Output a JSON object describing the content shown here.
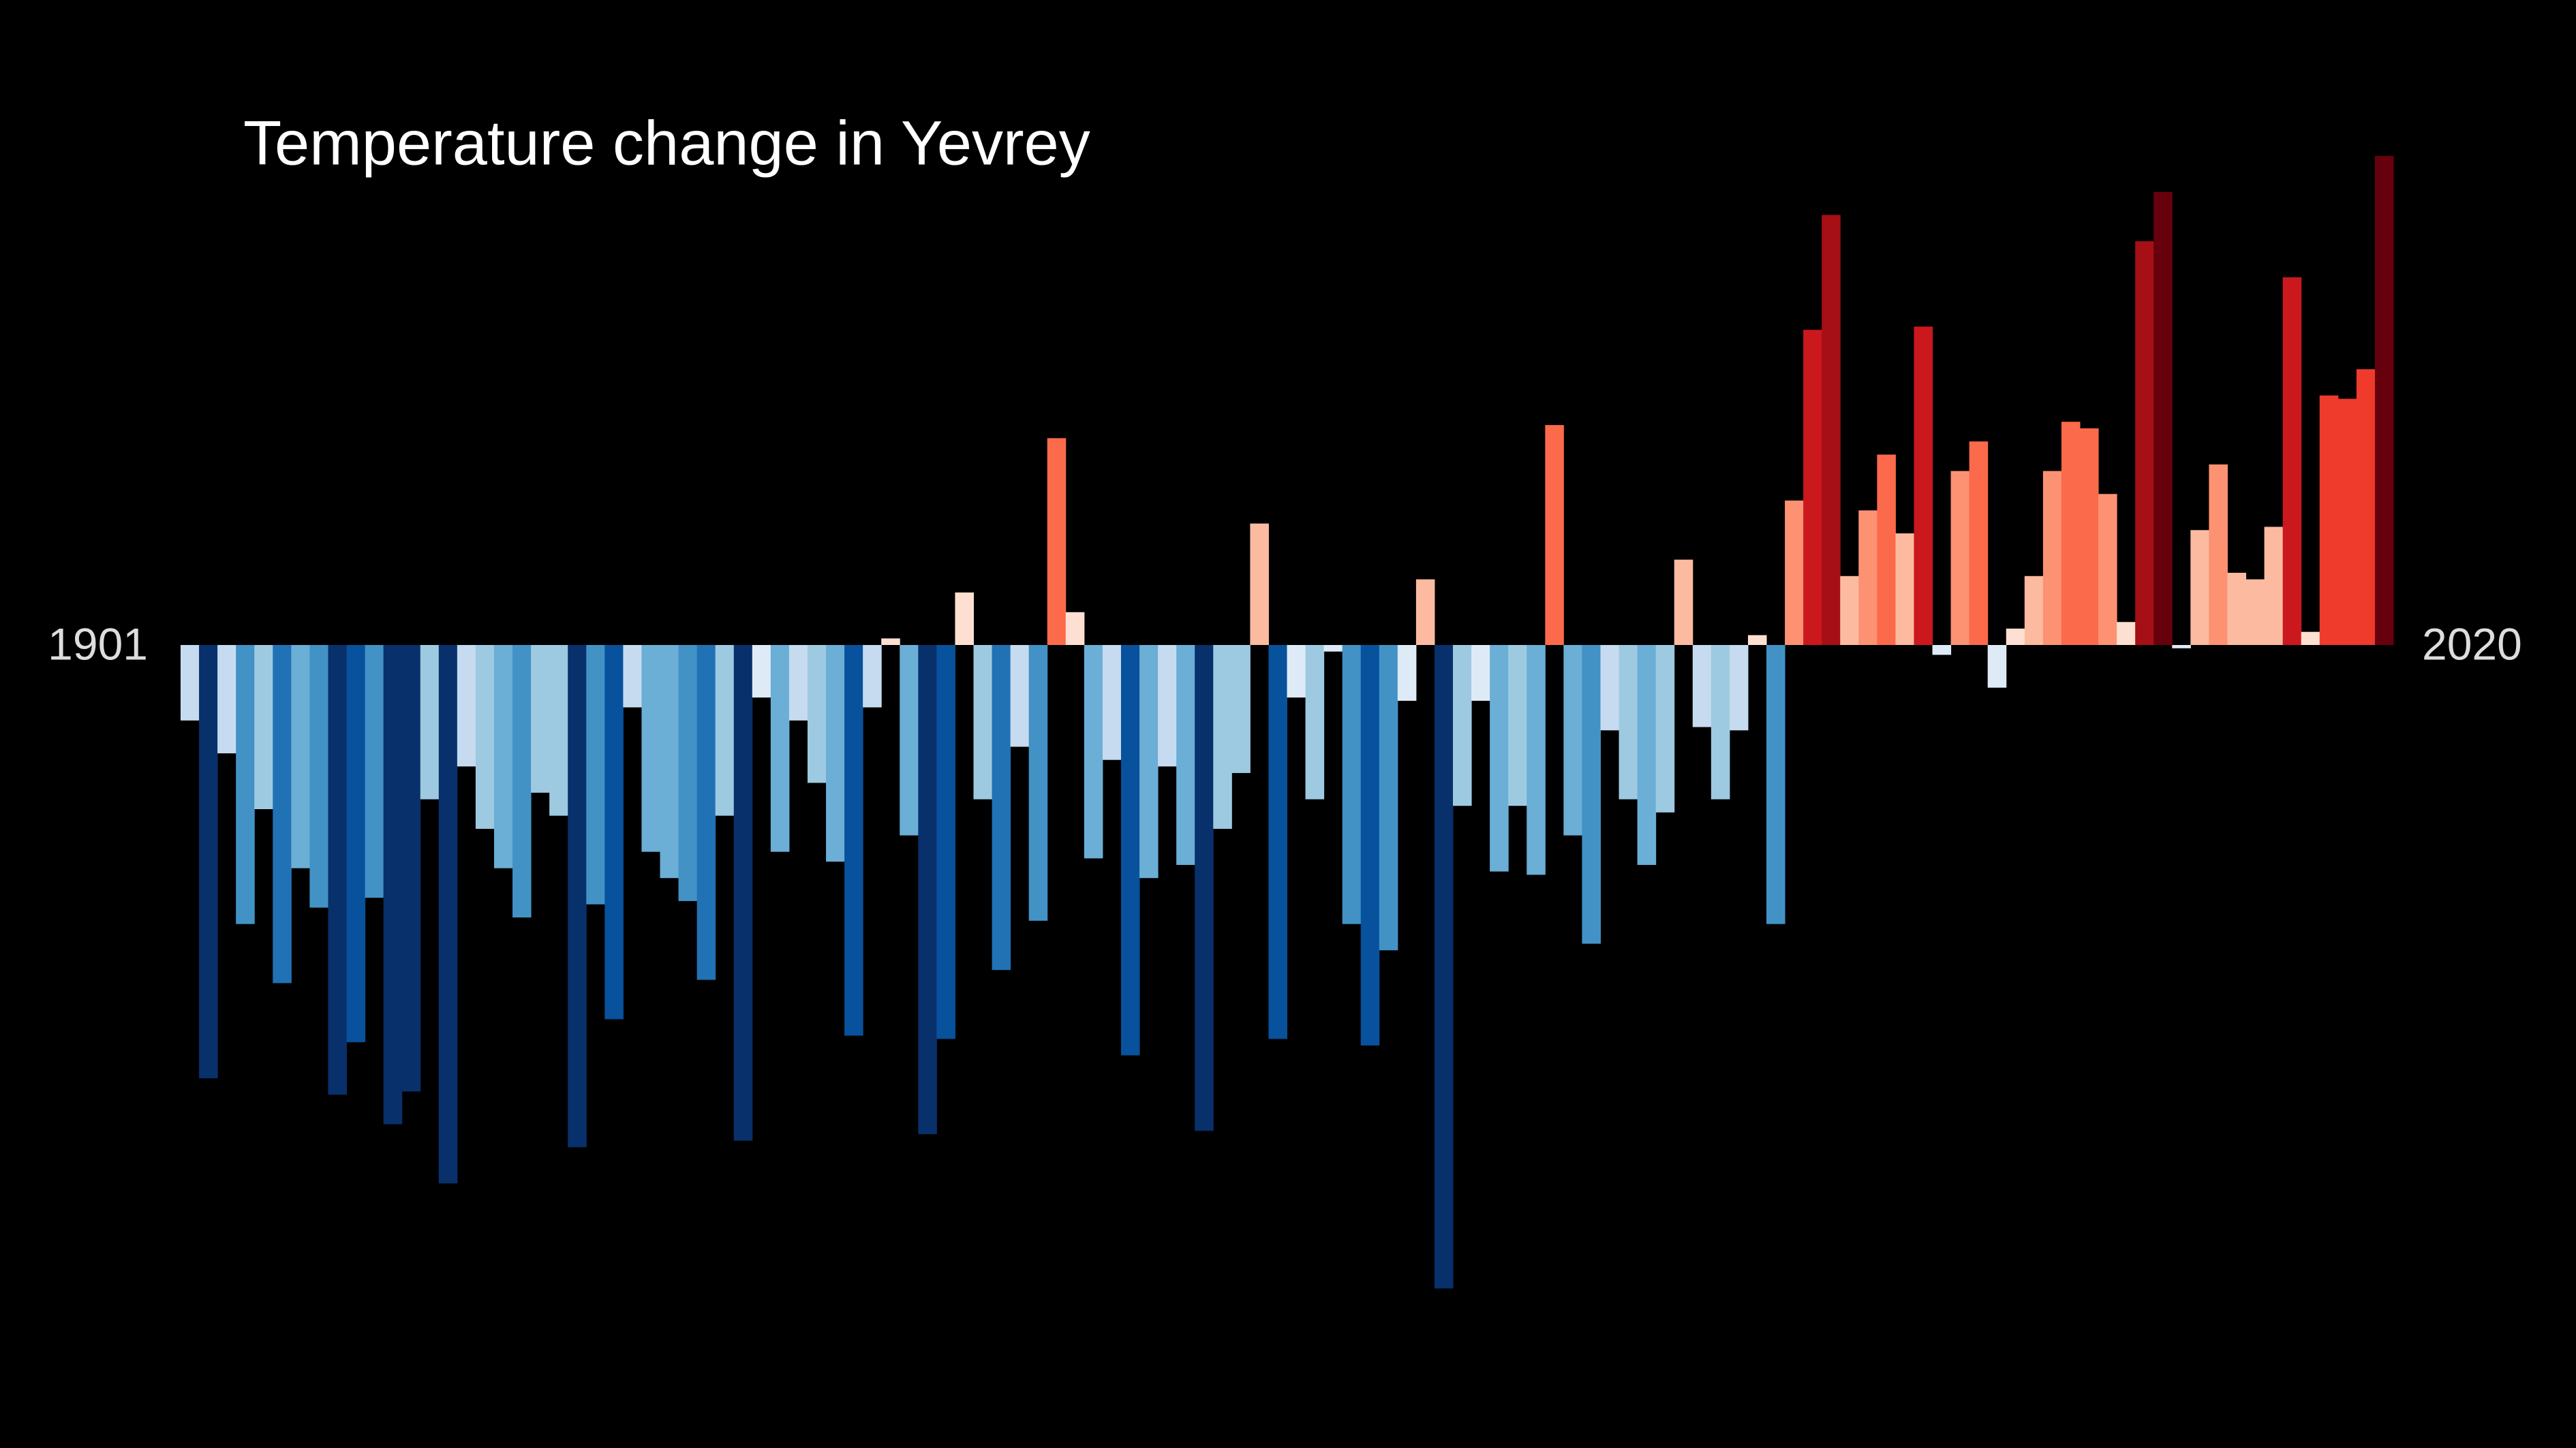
{
  "chart_data": {
    "type": "bar",
    "title": "Temperature change in Yevrey",
    "x": [
      1901,
      1902,
      1903,
      1904,
      1905,
      1906,
      1907,
      1908,
      1909,
      1910,
      1911,
      1912,
      1913,
      1914,
      1915,
      1916,
      1917,
      1918,
      1919,
      1920,
      1921,
      1922,
      1923,
      1924,
      1925,
      1926,
      1927,
      1928,
      1929,
      1930,
      1931,
      1932,
      1933,
      1934,
      1935,
      1936,
      1937,
      1938,
      1939,
      1940,
      1941,
      1942,
      1943,
      1944,
      1945,
      1946,
      1947,
      1948,
      1949,
      1950,
      1951,
      1952,
      1953,
      1954,
      1955,
      1956,
      1957,
      1958,
      1959,
      1960,
      1961,
      1962,
      1963,
      1964,
      1965,
      1966,
      1967,
      1968,
      1969,
      1970,
      1971,
      1972,
      1973,
      1974,
      1975,
      1976,
      1977,
      1978,
      1979,
      1980,
      1981,
      1982,
      1983,
      1984,
      1985,
      1986,
      1987,
      1988,
      1989,
      1990,
      1991,
      1992,
      1993,
      1994,
      1995,
      1996,
      1997,
      1998,
      1999,
      2000,
      2001,
      2002,
      2003,
      2004,
      2005,
      2006,
      2007,
      2008,
      2009,
      2010,
      2011,
      2012,
      2013,
      2014,
      2015,
      2016,
      2017,
      2018,
      2019,
      2020
    ],
    "values": [
      -0.23,
      -1.32,
      -0.33,
      -0.85,
      -0.5,
      -1.03,
      -0.68,
      -0.8,
      -1.37,
      -1.21,
      -0.77,
      -1.46,
      -1.36,
      -0.47,
      -1.64,
      -0.37,
      -0.56,
      -0.68,
      -0.83,
      -0.45,
      -0.52,
      -1.53,
      -0.79,
      -1.14,
      -0.19,
      -0.63,
      -0.71,
      -0.78,
      -1.02,
      -0.52,
      -1.51,
      -0.16,
      -0.63,
      -0.23,
      -0.42,
      -0.66,
      -1.19,
      -0.19,
      0.02,
      -0.58,
      -1.49,
      -1.2,
      0.16,
      -0.47,
      -0.99,
      -0.31,
      -0.84,
      0.63,
      0.1,
      -0.65,
      -0.35,
      -1.25,
      -0.71,
      -0.37,
      -0.67,
      -1.48,
      -0.56,
      -0.39,
      0.37,
      -1.2,
      -0.16,
      -0.47,
      -0.02,
      -0.85,
      -1.22,
      -0.93,
      -0.17,
      0.2,
      -1.96,
      -0.49,
      -0.17,
      -0.69,
      -0.49,
      -0.7,
      0.67,
      -0.58,
      -0.91,
      -0.26,
      -0.47,
      -0.67,
      -0.51,
      0.26,
      -0.25,
      -0.47,
      -0.26,
      0.03,
      -0.85,
      0.44,
      0.96,
      1.31,
      0.21,
      0.41,
      0.58,
      0.34,
      0.97,
      -0.03,
      0.53,
      0.62,
      -0.13,
      0.05,
      0.21,
      0.53,
      0.68,
      0.66,
      0.46,
      0.07,
      1.23,
      1.38,
      -0.01,
      0.35,
      0.55,
      0.22,
      0.2,
      0.36,
      1.12,
      0.04,
      0.76,
      0.75,
      0.84,
      1.49
    ],
    "xlim": [
      1900.5,
      2020.5
    ],
    "xticks": [
      1901,
      2020
    ],
    "ylim": [
      -2,
      1.5
    ],
    "clim": [
      -1.5,
      1.5
    ],
    "colormap": [
      "#08306b",
      "#08519c",
      "#2171b5",
      "#4292c6",
      "#6baed6",
      "#9ecae1",
      "#c6dbef",
      "#deebf7",
      "#fee0d2",
      "#fcbba1",
      "#fc9272",
      "#fb6a4a",
      "#ef3b2c",
      "#cb181d",
      "#a50f15",
      "#67000d"
    ]
  }
}
